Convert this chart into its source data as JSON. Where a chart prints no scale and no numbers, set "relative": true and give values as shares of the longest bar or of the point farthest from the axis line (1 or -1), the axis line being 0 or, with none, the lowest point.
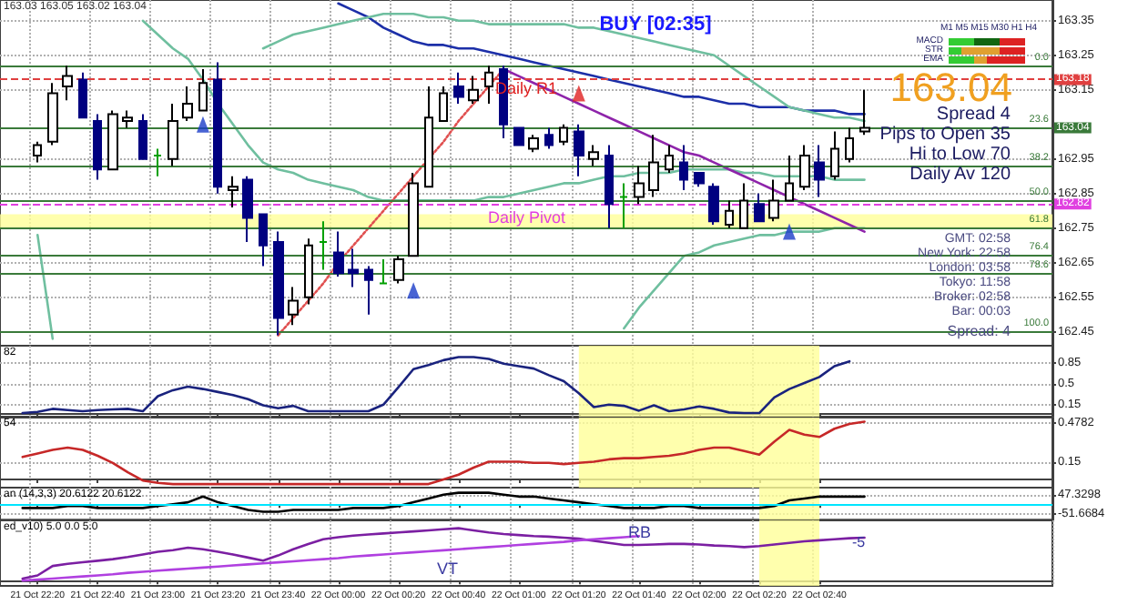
{
  "chart_data": [
    {
      "type": "candlestick",
      "colors": [
        null,
        null,
        "#ffffff",
        "#ffffff",
        "#ffffff",
        "#000080",
        "#000080",
        "#ffffff",
        "#ffffff",
        "#000080",
        "#00a000",
        "#ffffff",
        "#ffffff",
        "#ffffff",
        "#000080",
        "#ffffff",
        "#000080",
        "#000080",
        "#000080",
        "#ffffff",
        "#ffffff",
        "#00a000",
        "#000080",
        "#000080",
        "#000080",
        "#00a000",
        "#ffffff",
        "#ffffff",
        "#ffffff",
        "#ffffff",
        "#000080",
        "#ffffff",
        "#ffffff",
        "#000080",
        "#000080",
        "#ffffff",
        "#000080",
        "#ffffff",
        "#000080",
        "#ffffff",
        "#000080",
        "#00a000",
        "#ffffff",
        "#ffffff",
        "#ffffff",
        "#000080",
        "#000080",
        "#000080",
        "#ffffff",
        "#ffffff",
        "#000080",
        "#ffffff",
        "#ffffff",
        "#ffffff",
        "#000080",
        "#ffffff",
        "#ffffff",
        "#ffffff",
        null,
        null,
        null,
        null,
        null,
        null,
        null,
        null,
        null,
        null,
        null,
        null
      ],
      "annotations": [
        "163.03 163.05 163.02 163.04",
        "BUY [02:35]",
        "M1 M5 M15 M30 H1 H4",
        "MACD",
        "STR",
        "EMA",
        "163.04",
        "Spread 4",
        "Pips to Open 35",
        "Hi to Low 70",
        "Daily Av 120",
        "Daily R1",
        "Daily Pivot",
        "GMT: 02:58",
        "New York: 22:58",
        "London: 03:58",
        "Tokyo: 11:58",
        "Broker: 02:58",
        "Bar: 00:03",
        "Spread: 4",
        "0.0",
        "23.6",
        "38.2",
        "50.0",
        "61.8",
        "76.4",
        "78.6",
        "100.0"
      ],
      "categories": [
        null,
        null,
        "21 Oct 22:20",
        null,
        null,
        null,
        "21 Oct 22:40",
        null,
        null,
        null,
        "21 Oct 23:00",
        null,
        null,
        null,
        "21 Oct 23:20",
        null,
        null,
        null,
        "21 Oct 23:40",
        null,
        null,
        null,
        "22 Oct 00:00",
        null,
        null,
        null,
        "22 Oct 00:20",
        null,
        null,
        null,
        "22 Oct 00:40",
        null,
        null,
        null,
        "22 Oct 01:00",
        null,
        null,
        null,
        "22 Oct 01:20",
        null,
        null,
        null,
        "22 Oct 01:40",
        null,
        null,
        null,
        "22 Oct 02:00",
        null,
        null,
        null,
        "22 Oct 02:20",
        null,
        null,
        null,
        "22 Oct 02:40",
        null,
        null,
        null,
        null,
        null,
        null,
        null,
        null,
        null,
        null,
        null,
        null,
        null,
        null,
        null
      ],
      "ohlc": [
        null,
        null,
        [
          162.96,
          163.0,
          162.94,
          162.99
        ],
        [
          163.0,
          163.17,
          162.99,
          163.14
        ],
        [
          163.16,
          163.22,
          163.12,
          163.19
        ],
        [
          163.18,
          163.2,
          163.07,
          163.07
        ],
        [
          163.06,
          163.08,
          162.89,
          162.92
        ],
        [
          162.92,
          163.09,
          162.92,
          163.08
        ],
        [
          163.06,
          163.09,
          163.04,
          163.07
        ],
        [
          163.06,
          163.08,
          162.95,
          162.95
        ],
        [
          162.96,
          162.98,
          162.9,
          162.96
        ],
        [
          162.95,
          163.11,
          162.93,
          163.06
        ],
        [
          163.07,
          163.16,
          163.06,
          163.11
        ],
        [
          163.09,
          163.21,
          163.09,
          163.17
        ],
        [
          163.18,
          163.23,
          162.85,
          162.87
        ],
        [
          162.86,
          162.9,
          162.81,
          162.87
        ],
        [
          162.89,
          162.9,
          162.71,
          162.78
        ],
        [
          162.79,
          162.79,
          162.64,
          162.7
        ],
        [
          162.71,
          162.74,
          162.44,
          162.49
        ],
        [
          162.5,
          162.58,
          162.47,
          162.54
        ],
        [
          162.55,
          162.72,
          162.53,
          162.7
        ],
        [
          162.71,
          162.77,
          162.63,
          162.71
        ],
        [
          162.68,
          162.74,
          162.61,
          162.62
        ],
        [
          162.63,
          162.69,
          162.58,
          162.62
        ],
        [
          162.63,
          162.64,
          162.5,
          162.6
        ],
        [
          162.59,
          162.66,
          162.59,
          162.59
        ],
        [
          162.6,
          162.67,
          162.59,
          162.66
        ],
        [
          162.67,
          162.91,
          162.67,
          162.88
        ],
        [
          162.87,
          163.16,
          162.87,
          163.07
        ],
        [
          163.06,
          163.16,
          163.06,
          163.14
        ],
        [
          163.16,
          163.2,
          163.11,
          163.13
        ],
        [
          163.12,
          163.19,
          163.11,
          163.15
        ],
        [
          163.16,
          163.22,
          163.11,
          163.2
        ],
        [
          163.21,
          163.22,
          163.01,
          163.05
        ],
        [
          163.04,
          163.04,
          162.99,
          162.99
        ],
        [
          162.98,
          163.02,
          162.97,
          163.01
        ],
        [
          163.02,
          163.04,
          162.98,
          162.99
        ],
        [
          163.0,
          163.05,
          162.99,
          163.04
        ],
        [
          163.03,
          163.05,
          162.9,
          162.96
        ],
        [
          162.95,
          162.99,
          162.93,
          162.97
        ],
        [
          162.96,
          162.99,
          162.75,
          162.82
        ],
        [
          162.84,
          162.88,
          162.75,
          162.84
        ],
        [
          162.84,
          162.93,
          162.82,
          162.88
        ],
        [
          162.86,
          163.02,
          162.84,
          162.94
        ],
        [
          162.92,
          162.99,
          162.91,
          162.96
        ],
        [
          162.94,
          162.99,
          162.86,
          162.89
        ],
        [
          162.91,
          162.91,
          162.87,
          162.88
        ],
        [
          162.87,
          162.88,
          162.76,
          162.77
        ],
        [
          162.76,
          162.83,
          162.75,
          162.8
        ],
        [
          162.75,
          162.88,
          162.75,
          162.83
        ],
        [
          162.82,
          162.85,
          162.77,
          162.77
        ],
        [
          162.78,
          162.89,
          162.77,
          162.83
        ],
        [
          162.83,
          162.96,
          162.83,
          162.88
        ],
        [
          162.87,
          162.99,
          162.86,
          162.96
        ],
        [
          162.94,
          162.99,
          162.84,
          162.89
        ],
        [
          162.9,
          163.03,
          162.89,
          162.98
        ],
        [
          162.95,
          163.04,
          162.94,
          163.01
        ],
        [
          163.03,
          163.15,
          163.02,
          163.04
        ],
        null,
        null,
        null,
        null,
        null,
        null,
        null,
        null,
        null,
        null,
        null,
        null
      ],
      "series": [
        {
          "type": "line",
          "color": "#1c2fa8",
          "values": [
            null,
            null,
            null,
            null,
            null,
            null,
            null,
            null,
            null,
            null,
            null,
            null,
            null,
            null,
            null,
            null,
            null,
            null,
            null,
            null,
            null,
            null,
            163.4,
            163.38,
            163.36,
            163.33,
            163.31,
            163.29,
            163.28,
            163.28,
            163.27,
            163.27,
            163.26,
            163.25,
            163.24,
            163.23,
            163.22,
            163.21,
            163.2,
            163.19,
            163.18,
            163.17,
            163.16,
            163.15,
            163.14,
            163.13,
            163.13,
            163.12,
            163.11,
            163.11,
            163.1,
            163.1,
            163.1,
            163.09,
            163.09,
            163.09,
            163.08,
            163.08,
            null,
            null,
            null,
            null,
            null,
            null,
            null,
            null,
            null,
            null,
            null,
            null
          ]
        },
        {
          "type": "line",
          "color": "#6fbf9f",
          "values": [
            null,
            null,
            null,
            null,
            null,
            null,
            null,
            null,
            null,
            null,
            null,
            null,
            null,
            null,
            null,
            null,
            null,
            163.27,
            163.29,
            163.31,
            163.32,
            163.33,
            163.34,
            163.35,
            163.36,
            163.37,
            163.37,
            163.37,
            163.36,
            163.36,
            163.35,
            163.35,
            163.34,
            163.34,
            163.34,
            163.34,
            163.34,
            163.34,
            163.33,
            163.33,
            163.32,
            163.31,
            163.3,
            163.29,
            163.28,
            163.27,
            163.26,
            163.25,
            163.22,
            163.19,
            163.16,
            163.13,
            163.1,
            163.09,
            163.08,
            163.07,
            163.07,
            163.06,
            null,
            null,
            null,
            null,
            null,
            null,
            null,
            null,
            null,
            null,
            null,
            null
          ]
        },
        {
          "type": "line",
          "color": "#6fbf9f",
          "values": [
            null,
            null,
            null,
            null,
            null,
            null,
            null,
            null,
            null,
            163.35,
            163.31,
            163.27,
            163.24,
            163.18,
            163.11,
            163.05,
            162.99,
            162.94,
            162.92,
            162.91,
            162.89,
            162.88,
            162.87,
            162.86,
            162.84,
            162.83,
            162.83,
            162.83,
            162.83,
            162.83,
            162.83,
            162.83,
            162.84,
            162.84,
            162.85,
            162.86,
            162.87,
            162.88,
            162.88,
            162.89,
            162.9,
            162.9,
            162.91,
            162.91,
            162.91,
            162.92,
            162.92,
            162.92,
            162.92,
            162.91,
            162.91,
            162.9,
            162.9,
            162.9,
            162.9,
            162.89,
            162.89,
            162.89,
            null,
            null,
            null,
            null,
            null,
            null,
            null,
            null,
            null,
            null,
            null,
            null
          ]
        },
        {
          "type": "line",
          "color": "#6fbf9f",
          "values": [
            null,
            null,
            162.73,
            162.43,
            null,
            null,
            null,
            null,
            null,
            null,
            null,
            null,
            null,
            null,
            null,
            null,
            null,
            null,
            null,
            null,
            null,
            null,
            null,
            null,
            null,
            null,
            null,
            null,
            null,
            null,
            null,
            null,
            null,
            null,
            null,
            null,
            null,
            null,
            null,
            null,
            null,
            162.46,
            162.52,
            162.57,
            162.62,
            162.67,
            162.68,
            162.7,
            162.71,
            162.72,
            162.73,
            162.73,
            162.74,
            162.74,
            162.74,
            162.75,
            162.75,
            162.75,
            null,
            null,
            null,
            null,
            null,
            null,
            null,
            null,
            null,
            null,
            null,
            null
          ]
        },
        {
          "type": "line",
          "color": "#8e24aa",
          "values": [
            null,
            null,
            null,
            null,
            null,
            null,
            null,
            null,
            null,
            null,
            null,
            null,
            null,
            null,
            null,
            null,
            null,
            null,
            null,
            null,
            null,
            null,
            null,
            null,
            null,
            null,
            null,
            null,
            null,
            null,
            null,
            null,
            null,
            163.21,
            163.19,
            163.17,
            163.15,
            163.13,
            163.11,
            163.09,
            163.07,
            163.05,
            163.03,
            163.01,
            162.99,
            162.97,
            162.96,
            162.94,
            162.92,
            162.9,
            162.88,
            162.86,
            162.84,
            162.82,
            162.8,
            162.78,
            162.76,
            162.74,
            null,
            null,
            null,
            null,
            null,
            null,
            null,
            null,
            null,
            null,
            null,
            null
          ]
        },
        {
          "type": "line",
          "color": "#e05050",
          "line_style": "dotted",
          "values": [
            null,
            null,
            null,
            null,
            null,
            null,
            null,
            null,
            null,
            null,
            null,
            null,
            null,
            null,
            null,
            null,
            null,
            null,
            162.44,
            162.49,
            162.54,
            162.59,
            162.65,
            162.7,
            162.75,
            162.8,
            162.85,
            162.9,
            162.95,
            163.0,
            163.06,
            163.11,
            163.16,
            163.21,
            null,
            null,
            null,
            null,
            null,
            null,
            null,
            null,
            null,
            null,
            null,
            null,
            null,
            null,
            null,
            null,
            null,
            null,
            null,
            null,
            null,
            null,
            null,
            null,
            null,
            null,
            null,
            null,
            null,
            null,
            null,
            null,
            null,
            null,
            null,
            null
          ]
        },
        {
          "type": "scatter",
          "color": "#1a3cc8",
          "marker": "triangle",
          "values": [
            null,
            null,
            null,
            null,
            null,
            null,
            null,
            null,
            null,
            null,
            null,
            null,
            null,
            163.05,
            null,
            null,
            null,
            null,
            null,
            null,
            null,
            null,
            null,
            null,
            null,
            null,
            null,
            162.57,
            null,
            null,
            null,
            null,
            null,
            null,
            null,
            null,
            null,
            null,
            null,
            null,
            null,
            null,
            null,
            null,
            null,
            null,
            null,
            null,
            null,
            null,
            null,
            null,
            162.74,
            null,
            null,
            null,
            null,
            null,
            null,
            null,
            null,
            null,
            null,
            null,
            null,
            null,
            null,
            null,
            null,
            null
          ]
        },
        {
          "type": "scatter",
          "color": "#e02020",
          "marker": "triangle",
          "values": [
            null,
            null,
            null,
            null,
            null,
            null,
            null,
            null,
            null,
            null,
            null,
            null,
            null,
            null,
            null,
            null,
            null,
            null,
            null,
            null,
            null,
            null,
            null,
            null,
            null,
            null,
            null,
            null,
            null,
            null,
            null,
            null,
            null,
            null,
            null,
            null,
            null,
            null,
            163.14,
            null,
            null,
            null,
            null,
            null,
            null,
            null,
            null,
            null,
            null,
            null,
            null,
            null,
            null,
            null,
            null,
            null,
            null,
            null,
            null,
            null,
            null,
            null,
            null,
            null,
            null,
            null,
            null,
            null,
            null,
            null
          ]
        }
      ],
      "ylim": [
        162.41,
        163.41
      ],
      "yticks": [
        163.35,
        163.25,
        163.15,
        162.95,
        162.85,
        162.75,
        162.65,
        162.55,
        162.45
      ],
      "ref_lines": [
        {
          "axis": "y",
          "value": 163.18,
          "label": "163.18",
          "color": "#e04040",
          "line_style": "dashed"
        },
        {
          "axis": "y",
          "value": 162.82,
          "label": "162.82",
          "color": "#e040e0",
          "line_style": "dashed"
        },
        {
          "axis": "y",
          "value": 163.22,
          "color": "#3a7a3a"
        },
        {
          "axis": "y",
          "value": 163.04,
          "label": "163.04",
          "color": "#3a7a3a",
          "line_style": "solid"
        },
        {
          "axis": "y",
          "value": 162.93,
          "color": "#3a7a3a"
        },
        {
          "axis": "y",
          "value": 162.83,
          "color": "#3a7a3a"
        },
        {
          "axis": "y",
          "value": 162.75,
          "color": "#3a7a3a"
        },
        {
          "axis": "y",
          "value": 162.67,
          "color": "#3a7a3a"
        },
        {
          "axis": "y",
          "value": 162.62,
          "color": "#3a7a3a"
        },
        {
          "axis": "y",
          "value": 162.45,
          "color": "#3a7a3a"
        }
      ],
      "bands": [
        {
          "axis": "y",
          "from": 162.75,
          "to": 162.79,
          "color": "#ffff99"
        }
      ],
      "grid": true,
      "tick_labels": "y"
    },
    {
      "type": "line",
      "annotations": [
        "82"
      ],
      "categories": [
        null,
        null,
        "21 Oct 22:20",
        null,
        null,
        null,
        "21 Oct 22:40",
        null,
        null,
        null,
        "21 Oct 23:00",
        null,
        null,
        null,
        "21 Oct 23:20",
        null,
        null,
        null,
        "21 Oct 23:40",
        null,
        null,
        null,
        "22 Oct 00:00",
        null,
        null,
        null,
        "22 Oct 00:20",
        null,
        null,
        null,
        "22 Oct 00:40",
        null,
        null,
        null,
        "22 Oct 01:00",
        null,
        null,
        null,
        "22 Oct 01:20",
        null,
        null,
        null,
        "22 Oct 01:40",
        null,
        null,
        null,
        "22 Oct 02:00",
        null,
        null,
        null,
        "22 Oct 02:20",
        null,
        null,
        null,
        "22 Oct 02:40",
        null,
        null,
        null,
        null,
        null,
        null,
        null,
        null,
        null,
        null,
        null,
        null,
        null,
        null,
        null
      ],
      "series": [
        {
          "color": "#1a237e",
          "values": [
            null,
            0.02,
            0.04,
            0.09,
            0.07,
            0.05,
            0.07,
            0.08,
            0.09,
            0.05,
            0.3,
            0.4,
            0.46,
            0.42,
            0.37,
            0.32,
            0.25,
            0.15,
            0.1,
            0.14,
            0.05,
            0.05,
            0.05,
            0.05,
            0.05,
            0.16,
            0.45,
            0.75,
            0.82,
            0.9,
            0.95,
            0.95,
            0.92,
            0.84,
            0.8,
            0.76,
            0.65,
            0.55,
            0.35,
            0.12,
            0.16,
            0.14,
            0.06,
            0.15,
            0.05,
            0.08,
            0.13,
            0.09,
            0.03,
            0.02,
            0.02,
            0.28,
            0.42,
            0.52,
            0.62,
            0.8,
            0.88,
            null,
            null,
            null,
            null,
            null,
            null,
            null,
            null,
            null,
            null,
            null,
            null,
            null
          ]
        }
      ],
      "ylim": [
        -0.04,
        1.14
      ],
      "yticks": [
        0.85,
        0.5,
        0.15
      ],
      "grid": true,
      "tick_labels": "y",
      "bands": [
        {
          "axis": "x",
          "from": "22 Oct 01:20",
          "to": "22 Oct 02:40",
          "color": "#ffff99"
        }
      ]
    },
    {
      "type": "line",
      "annotations": [
        "54"
      ],
      "categories": [
        null,
        null,
        "21 Oct 22:20",
        null,
        null,
        null,
        "21 Oct 22:40",
        null,
        null,
        null,
        "21 Oct 23:00",
        null,
        null,
        null,
        "21 Oct 23:20",
        null,
        null,
        null,
        "21 Oct 23:40",
        null,
        null,
        null,
        "22 Oct 00:00",
        null,
        null,
        null,
        "22 Oct 00:20",
        null,
        null,
        null,
        "22 Oct 00:40",
        null,
        null,
        null,
        "22 Oct 01:00",
        null,
        null,
        null,
        "22 Oct 01:20",
        null,
        null,
        null,
        "22 Oct 01:40",
        null,
        null,
        null,
        "22 Oct 02:00",
        null,
        null,
        null,
        "22 Oct 02:20",
        null,
        null,
        null,
        "22 Oct 02:40",
        null,
        null,
        null,
        null,
        null,
        null,
        null,
        null,
        null,
        null,
        null,
        null,
        null,
        null,
        null
      ],
      "series": [
        {
          "color": "#c62828",
          "values": [
            null,
            0.19,
            0.22,
            0.25,
            0.27,
            0.25,
            0.2,
            0.14,
            0.06,
            -0.01,
            -0.03,
            -0.04,
            -0.04,
            -0.04,
            -0.04,
            -0.04,
            -0.04,
            -0.04,
            -0.04,
            -0.04,
            -0.04,
            -0.04,
            -0.04,
            -0.04,
            -0.04,
            -0.04,
            -0.04,
            -0.04,
            -0.04,
            0.0,
            0.04,
            0.1,
            0.15,
            0.15,
            0.15,
            0.14,
            0.14,
            0.13,
            0.14,
            0.15,
            0.17,
            0.18,
            0.18,
            0.19,
            0.2,
            0.22,
            0.25,
            0.27,
            0.27,
            0.24,
            0.21,
            0.32,
            0.42,
            0.38,
            0.36,
            0.43,
            0.47,
            0.49,
            null,
            null,
            null,
            null,
            null,
            null,
            null,
            null,
            null,
            null,
            null,
            null
          ]
        }
      ],
      "ylim": [
        -0.07,
        0.525
      ],
      "yticks": [
        0.4782,
        0.15
      ],
      "grid": true,
      "tick_labels": "y",
      "bands": [
        {
          "axis": "x",
          "from": "22 Oct 01:20",
          "to": "22 Oct 02:40",
          "color": "#ffff99"
        }
      ]
    },
    {
      "type": "line",
      "annotations": [
        "an (14,3,3) 20.6122 20.6122"
      ],
      "categories": [
        null,
        null,
        "21 Oct 22:20",
        null,
        null,
        null,
        "21 Oct 22:40",
        null,
        null,
        null,
        "21 Oct 23:00",
        null,
        null,
        null,
        "21 Oct 23:20",
        null,
        null,
        null,
        "21 Oct 23:40",
        null,
        null,
        null,
        "22 Oct 00:00",
        null,
        null,
        null,
        "22 Oct 00:20",
        null,
        null,
        null,
        "22 Oct 00:40",
        null,
        null,
        null,
        "22 Oct 01:00",
        null,
        null,
        null,
        "22 Oct 01:20",
        null,
        null,
        null,
        "22 Oct 01:40",
        null,
        null,
        null,
        "22 Oct 02:00",
        null,
        null,
        null,
        "22 Oct 02:20",
        null,
        null,
        null,
        "22 Oct 02:40",
        null,
        null,
        null,
        null,
        null,
        null,
        null,
        null,
        null,
        null,
        null,
        null,
        null,
        null,
        null
      ],
      "series": [
        {
          "color": "#000000",
          "values": [
            null,
            -20,
            -20,
            -20,
            -10,
            -10,
            -20,
            -20,
            -20,
            -20,
            -10,
            0,
            10,
            40,
            10,
            -10,
            -30,
            -40,
            -40,
            -30,
            -30,
            -30,
            -30,
            -20,
            -20,
            -20,
            -10,
            10,
            30,
            50,
            60,
            60,
            60,
            50,
            40,
            40,
            30,
            20,
            10,
            0,
            -10,
            -20,
            -20,
            -20,
            -10,
            -10,
            -20,
            -20,
            -20,
            -20,
            -20,
            -10,
            20,
            30,
            40,
            40,
            40,
            40,
            null,
            null,
            null,
            null,
            null,
            null,
            null,
            null,
            null,
            null,
            null,
            null
          ]
        }
      ],
      "ylim": [
        -81,
        87
      ],
      "yticks": [
        47.3298,
        -51.6684
      ],
      "grid": true,
      "tick_labels": "y",
      "ref_lines": [
        {
          "axis": "y",
          "value": 0,
          "color": "#00e5ff"
        }
      ],
      "bands": [
        {
          "axis": "x",
          "from": "22 Oct 02:20",
          "to": "22 Oct 02:40",
          "color": "#ffff99"
        }
      ]
    },
    {
      "type": "line",
      "relative": true,
      "annotations": [
        "ed_v10) 5.0 0.0 5.0",
        "RB",
        "VT",
        "-5"
      ],
      "categories": [
        null,
        null,
        "21 Oct 22:20",
        null,
        null,
        null,
        "21 Oct 22:40",
        null,
        null,
        null,
        "21 Oct 23:00",
        null,
        null,
        null,
        "21 Oct 23:20",
        null,
        null,
        null,
        "21 Oct 23:40",
        null,
        null,
        null,
        "22 Oct 00:00",
        null,
        null,
        null,
        "22 Oct 00:20",
        null,
        null,
        null,
        "22 Oct 00:40",
        null,
        null,
        null,
        "22 Oct 01:00",
        null,
        null,
        null,
        "22 Oct 01:20",
        null,
        null,
        null,
        "22 Oct 01:40",
        null,
        null,
        null,
        "22 Oct 02:00",
        null,
        null,
        null,
        "22 Oct 02:20",
        null,
        null,
        null,
        "22 Oct 02:40",
        null,
        null,
        null,
        null,
        null,
        null,
        null,
        null,
        null,
        null,
        null,
        null,
        null,
        null,
        null
      ],
      "series": [
        {
          "color": "#7b1fa2",
          "values": [
            null,
            0.04,
            0.1,
            0.28,
            0.32,
            0.35,
            0.38,
            0.41,
            0.45,
            0.5,
            0.55,
            0.58,
            0.63,
            0.6,
            0.55,
            0.5,
            0.44,
            0.38,
            0.48,
            0.6,
            0.7,
            0.79,
            0.83,
            0.86,
            0.88,
            0.9,
            0.92,
            0.94,
            0.96,
            0.98,
            1,
            0.96,
            0.92,
            0.89,
            0.87,
            0.85,
            0.84,
            0.82,
            0.8,
            0.76,
            0.72,
            0.68,
            0.68,
            0.69,
            0.7,
            0.7,
            0.69,
            0.67,
            0.66,
            0.64,
            0.66,
            0.69,
            0.72,
            0.75,
            0.77,
            0.79,
            0.81,
            0.82,
            null,
            null,
            null,
            null,
            null,
            null,
            null,
            null,
            null,
            null,
            null,
            null
          ]
        },
        {
          "color": "#b040e0",
          "values": [
            null,
            0,
            0.02,
            0.04,
            0.06,
            0.08,
            0.1,
            0.12,
            0.15,
            0.17,
            0.19,
            0.21,
            0.23,
            0.25,
            0.27,
            0.29,
            0.31,
            0.33,
            0.35,
            0.37,
            0.39,
            0.41,
            0.43,
            0.46,
            0.48,
            0.5,
            0.52,
            0.54,
            0.56,
            0.58,
            0.6,
            0.62,
            0.64,
            0.66,
            0.68,
            0.7,
            0.72,
            0.74,
            0.77,
            0.79,
            0.81,
            0.83,
            0.85,
            null,
            null,
            null,
            null,
            null,
            null,
            null,
            null,
            null,
            null,
            null,
            null,
            null,
            null,
            null,
            null,
            null,
            null,
            null,
            null,
            null,
            null,
            null,
            null,
            null,
            null,
            null
          ]
        }
      ],
      "grid": true,
      "tick_labels": "x",
      "bands": [
        {
          "axis": "x",
          "from": "22 Oct 02:20",
          "to": "22 Oct 02:40",
          "color": "#ffff99"
        }
      ]
    }
  ]
}
